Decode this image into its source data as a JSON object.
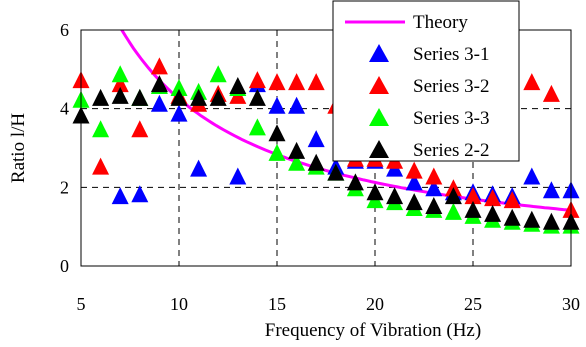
{
  "chart_data": {
    "type": "scatter",
    "xlabel": "Frequency of Vibration (Hz)",
    "ylabel": "Ratio l/H",
    "xlim": [
      5,
      30
    ],
    "ylim": [
      0,
      6
    ],
    "xticks": [
      5,
      10,
      15,
      20,
      25,
      30
    ],
    "yticks": [
      0,
      2,
      4,
      6
    ],
    "grid": true,
    "legend_position": "top-right",
    "theory": {
      "name": "Theory",
      "color": "#ff00ff",
      "formula": "l/H = 42.5 / f",
      "x_range": [
        6.9,
        30
      ]
    },
    "series": [
      {
        "name": "Series 3-1",
        "color": "#0000ff",
        "x": [
          7,
          8,
          9,
          10,
          11,
          13,
          14,
          15,
          16,
          17,
          18,
          19,
          20,
          21,
          22,
          23,
          24,
          25,
          26,
          27,
          28,
          29,
          30
        ],
        "y": [
          1.75,
          1.8,
          4.1,
          3.85,
          2.45,
          2.25,
          4.6,
          4.05,
          4.05,
          3.2,
          2.5,
          2.65,
          2.65,
          2.45,
          2.1,
          1.95,
          1.85,
          1.85,
          1.8,
          1.75,
          2.25,
          1.9,
          1.9
        ]
      },
      {
        "name": "Series 3-2",
        "color": "#ff0000",
        "x": [
          5,
          6,
          7,
          8,
          9,
          10,
          11,
          12,
          13,
          14,
          15,
          16,
          17,
          18,
          19,
          20,
          21,
          22,
          23,
          24,
          25,
          26,
          27,
          28,
          29,
          30
        ],
        "y": [
          4.7,
          2.5,
          4.6,
          3.45,
          5.05,
          4.3,
          4.1,
          4.35,
          4.3,
          4.7,
          4.65,
          4.65,
          4.65,
          4.05,
          2.7,
          2.7,
          2.65,
          2.4,
          2.25,
          1.95,
          1.75,
          1.7,
          1.65,
          4.65,
          4.35,
          1.4
        ]
      },
      {
        "name": "Series 3-3",
        "color": "#00ff00",
        "x": [
          5,
          6,
          7,
          8,
          9,
          10,
          11,
          12,
          13,
          14,
          15,
          16,
          17,
          18,
          19,
          20,
          21,
          22,
          23,
          24,
          25,
          26,
          27,
          28,
          29,
          30
        ],
        "y": [
          4.2,
          3.45,
          4.85,
          4.25,
          4.55,
          4.5,
          4.4,
          4.85,
          4.5,
          3.5,
          2.85,
          2.6,
          2.5,
          2.35,
          1.95,
          1.65,
          1.6,
          1.45,
          1.4,
          1.35,
          1.25,
          1.15,
          1.1,
          1.05,
          1.0,
          1.0
        ]
      },
      {
        "name": "Series 2-2",
        "color": "#000000",
        "x": [
          5,
          6,
          7,
          8,
          9,
          10,
          11,
          12,
          13,
          14,
          15,
          16,
          17,
          18,
          19,
          20,
          21,
          22,
          23,
          24,
          25,
          26,
          27,
          28,
          29,
          30
        ],
        "y": [
          3.8,
          4.25,
          4.3,
          4.25,
          4.6,
          4.25,
          4.25,
          4.25,
          4.55,
          4.25,
          3.35,
          2.9,
          2.6,
          2.35,
          2.1,
          1.85,
          1.75,
          1.6,
          1.5,
          1.75,
          1.4,
          1.3,
          1.2,
          1.15,
          1.1,
          1.1
        ]
      }
    ]
  }
}
